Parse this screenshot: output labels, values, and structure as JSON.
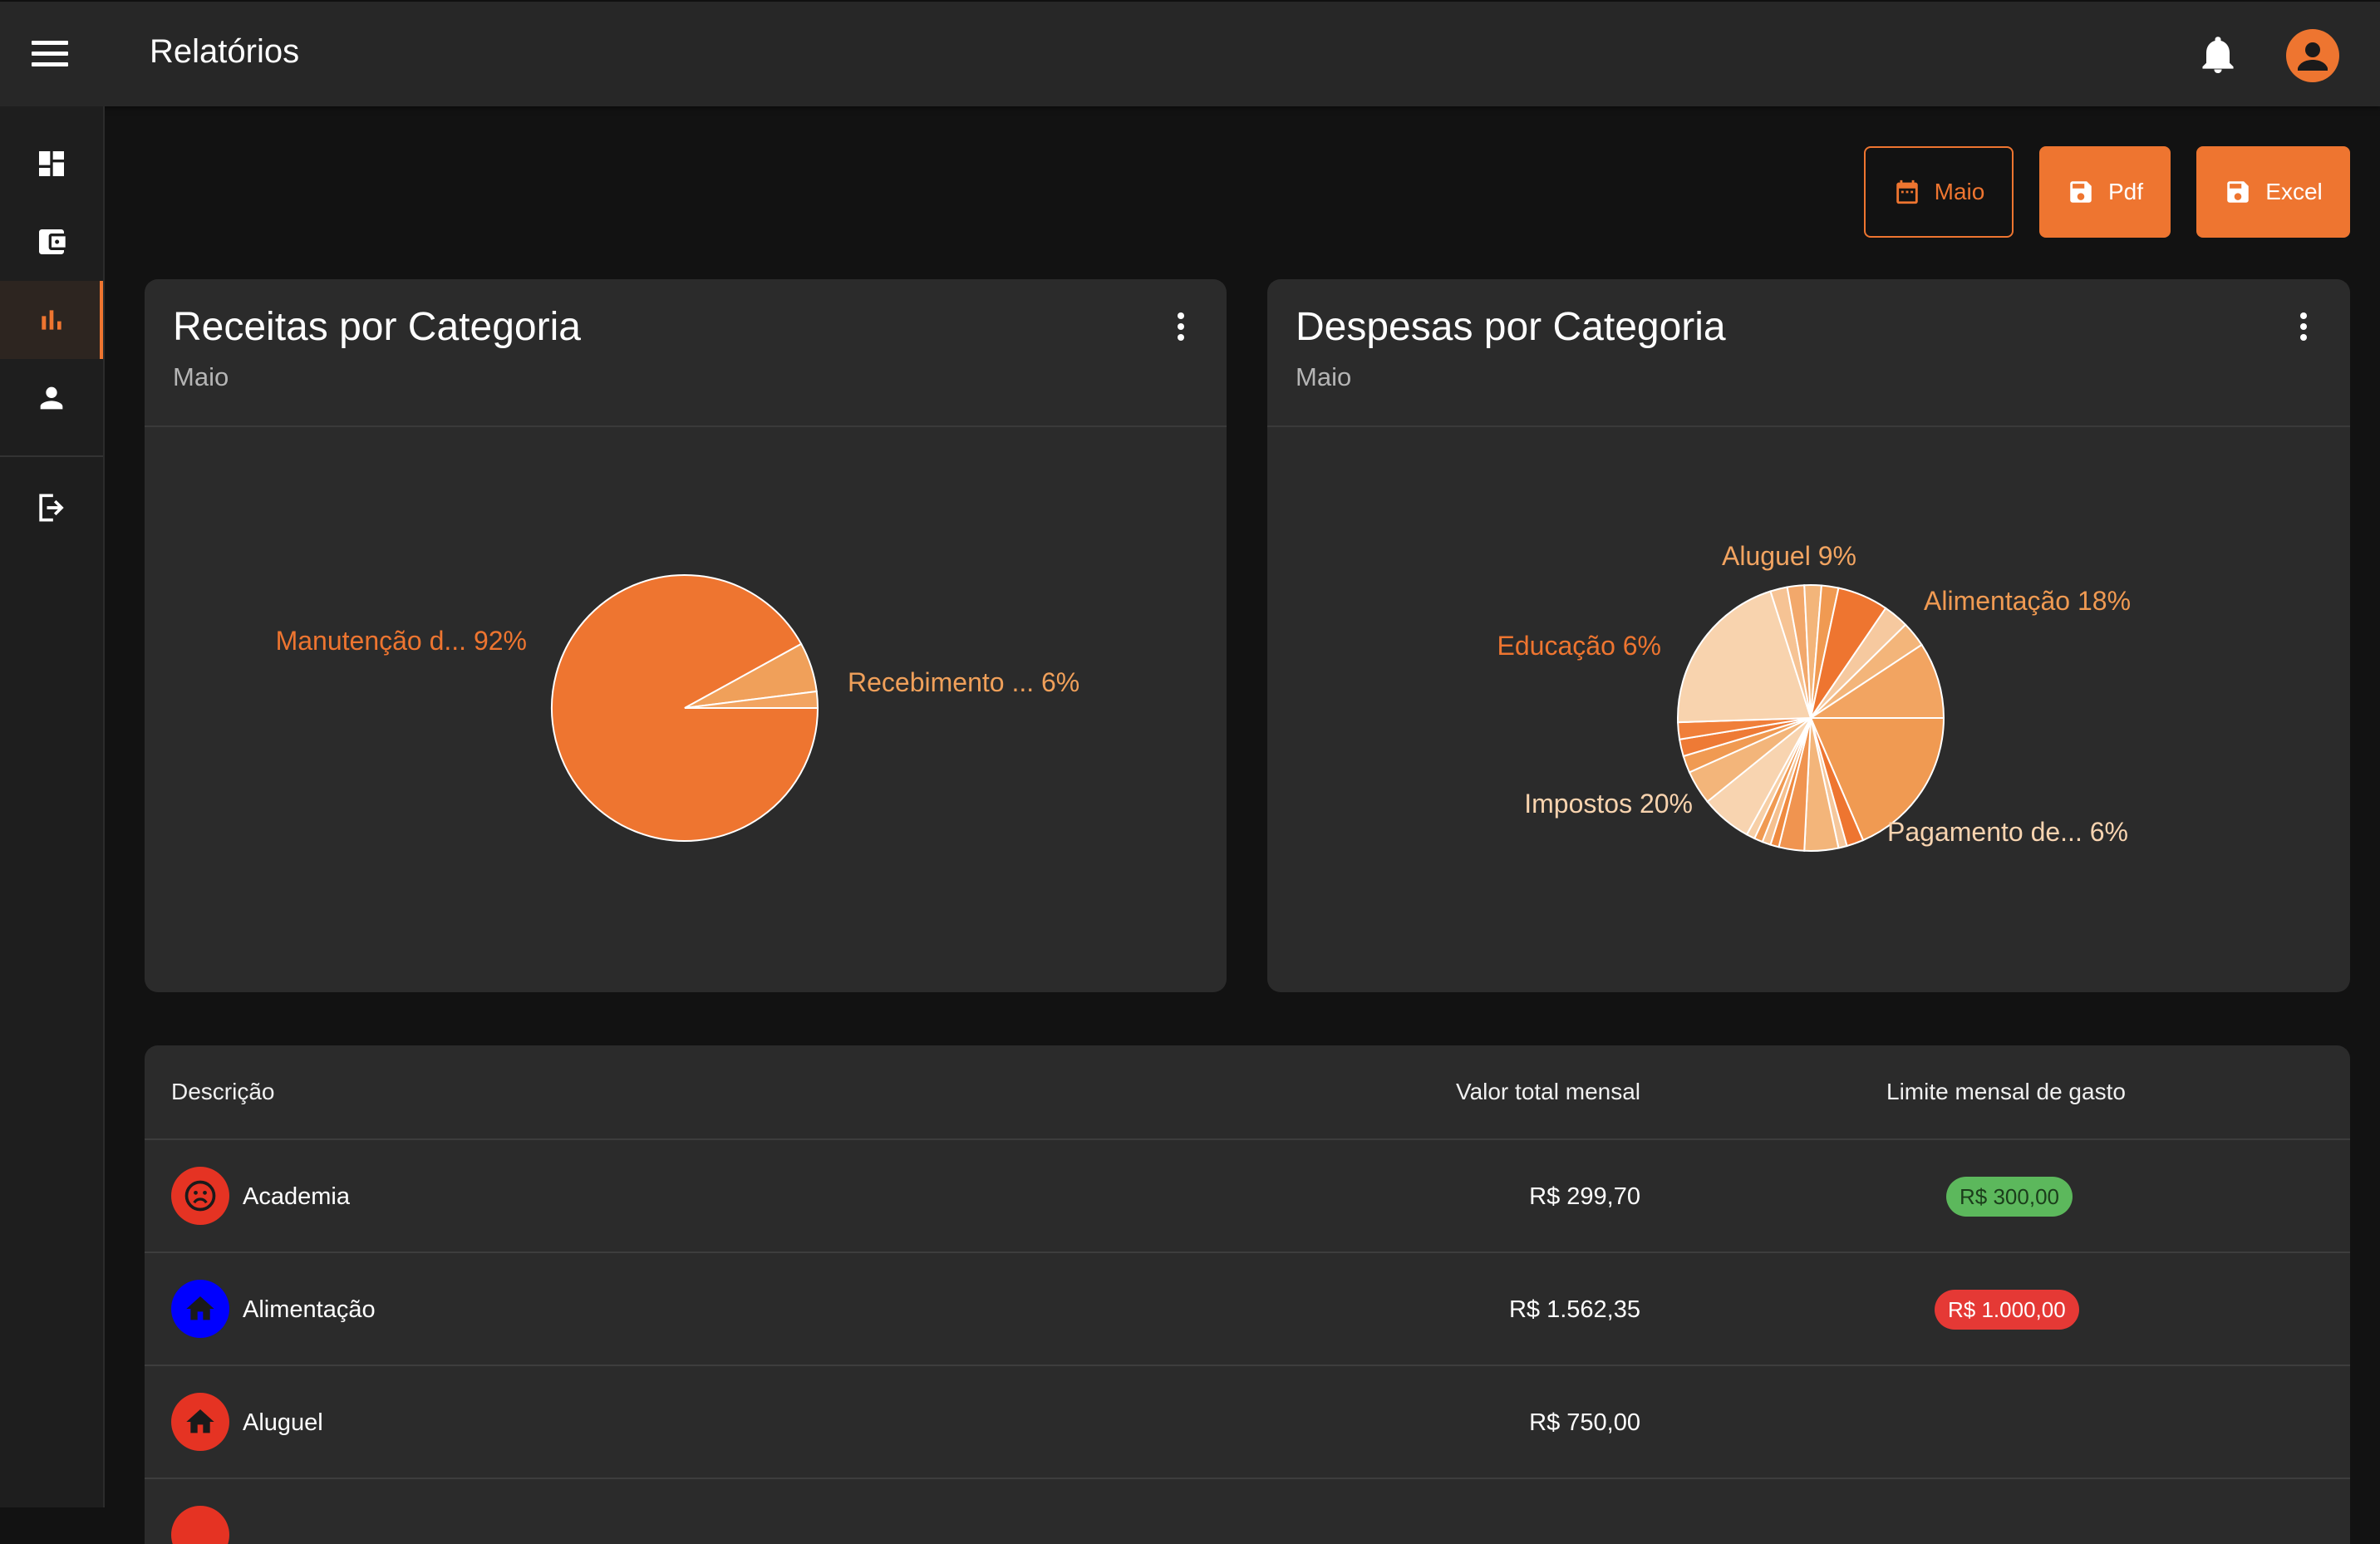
{
  "appbar": {
    "title": "Relatórios"
  },
  "toolbar": {
    "month_label": "Maio",
    "pdf_label": "Pdf",
    "excel_label": "Excel"
  },
  "cards": [
    {
      "title": "Receitas por Categoria",
      "subtitle": "Maio",
      "chart_data": {
        "type": "pie",
        "slices": [
          {
            "label": "Manutenção d... 92%",
            "value": 92,
            "color": "#ee7530"
          },
          {
            "label": "Recebimento ... 6%",
            "value": 6,
            "color": "#f0a05a"
          },
          {
            "label": "",
            "value": 2,
            "color": "#f2a461"
          }
        ]
      }
    },
    {
      "title": "Despesas por Categoria",
      "subtitle": "Maio",
      "chart_data": {
        "type": "pie",
        "slices": [
          {
            "label": "Alimentação 18%",
            "value": 18,
            "color": "#f09a52"
          },
          {
            "label": "",
            "value": 2,
            "color": "#ee7530"
          },
          {
            "label": "",
            "value": 1,
            "color": "#f5c79c"
          },
          {
            "label": "",
            "value": 4,
            "color": "#f3b57a"
          },
          {
            "label": "",
            "value": 3,
            "color": "#f09450"
          },
          {
            "label": "",
            "value": 1,
            "color": "#ef8a40"
          },
          {
            "label": "",
            "value": 1,
            "color": "#f5c08f"
          },
          {
            "label": "",
            "value": 1,
            "color": "#f09a52"
          },
          {
            "label": "",
            "value": 1,
            "color": "#f7cfa6"
          },
          {
            "label": "Pagamento de... 6%",
            "value": 6,
            "color": "#f8d4b0"
          },
          {
            "label": "",
            "value": 4,
            "color": "#f3b57a"
          },
          {
            "label": "",
            "value": 2,
            "color": "#f09a52"
          },
          {
            "label": "",
            "value": 2,
            "color": "#ee7a35"
          },
          {
            "label": "",
            "value": 2,
            "color": "#f07f3a"
          },
          {
            "label": "Impostos 20%",
            "value": 20,
            "color": "#f8d3ae"
          },
          {
            "label": "",
            "value": 2,
            "color": "#f6c394"
          },
          {
            "label": "",
            "value": 2,
            "color": "#f2a86b"
          },
          {
            "label": "",
            "value": 2,
            "color": "#f3b57a"
          },
          {
            "label": "",
            "value": 2,
            "color": "#f09a52"
          },
          {
            "label": "Educação 6%",
            "value": 6,
            "color": "#ee7530"
          },
          {
            "label": "",
            "value": 3,
            "color": "#f6c99f"
          },
          {
            "label": "",
            "value": 3,
            "color": "#f3b57a"
          },
          {
            "label": "Aluguel 9%",
            "value": 9,
            "color": "#f2a461"
          }
        ]
      }
    }
  ],
  "table": {
    "headers": [
      "Descrição",
      "Valor total mensal",
      "Limite mensal de gasto"
    ],
    "rows": [
      {
        "desc": "Academia",
        "value": "R$ 299,70",
        "limit": "R$ 300,00",
        "icon": "sad-face-icon",
        "icon_color": "#e53323",
        "limit_color": "#5cb85c",
        "limit_text_color": "#1b3d1b"
      },
      {
        "desc": "Alimentação",
        "value": "R$ 1.562,35",
        "limit": "R$ 1.000,00",
        "icon": "home-icon",
        "icon_color": "#0000ff",
        "limit_color": "#e53935",
        "limit_text_color": "#ffffff"
      },
      {
        "desc": "Aluguel",
        "value": "R$ 750,00",
        "limit": "",
        "icon": "home-icon",
        "icon_color": "#e53323",
        "limit_color": "",
        "limit_text_color": ""
      }
    ]
  }
}
